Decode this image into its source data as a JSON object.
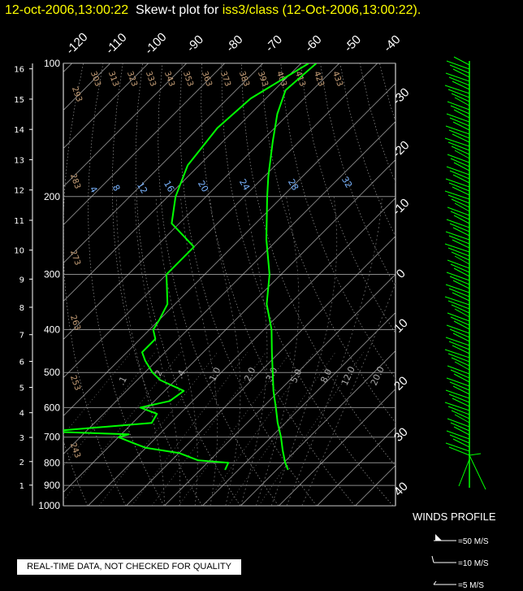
{
  "title": {
    "datetime": "12-oct-2006,13:00:22",
    "mid": "Skew-t plot for",
    "station": "iss3/class",
    "paren": "(12-Oct-2006,13:00:22)."
  },
  "notice": "REAL-TIME DATA, NOT CHECKED FOR QUALITY",
  "colors": {
    "temperature": "#00ff00",
    "dewpoint": "#00ff00",
    "wind": "#00ff00",
    "title": "#ffff00"
  },
  "chart_data": {
    "type": "line",
    "pressure_axis": {
      "ticks": [
        100,
        200,
        300,
        400,
        500,
        600,
        700,
        800,
        900,
        1000
      ],
      "scale": "log",
      "range": [
        1000,
        100
      ]
    },
    "height_km_axis": {
      "ticks": [
        16,
        15,
        14,
        13,
        12,
        11,
        10,
        9,
        8,
        7,
        6,
        5,
        4,
        3,
        2,
        1
      ]
    },
    "top_temp_labels": [
      "-120",
      "-110",
      "-100",
      "-90",
      "-80",
      "-70",
      "-60",
      "-50",
      "-40"
    ],
    "right_temp_labels": [
      "-30",
      "-20",
      "-10",
      "0",
      "10",
      "20",
      "30",
      "40"
    ],
    "dry_adiabat_labels": [
      "293",
      "303",
      "313",
      "323",
      "333",
      "343",
      "353",
      "363",
      "373",
      "383",
      "393",
      "403",
      "413",
      "423",
      "433",
      "283",
      "273",
      "263",
      "253",
      "243"
    ],
    "moist_adiabat_labels": [
      "4",
      "8",
      "12",
      "16",
      "20",
      "24",
      "28",
      "32"
    ],
    "mixing_ratio_labels": [
      ".1",
      ".2",
      ".4",
      "1.0",
      "2.0",
      "3.0",
      "5.0",
      "8.0",
      "12.0",
      "20.0"
    ],
    "series": [
      {
        "name": "Temperature",
        "p": [
          830,
          800,
          750,
          700,
          650,
          600,
          550,
          500,
          450,
          400,
          350,
          300,
          250,
          200,
          180,
          150,
          130,
          115,
          100
        ],
        "t": [
          23,
          20.4,
          16.5,
          12.6,
          8,
          3.5,
          -1.5,
          -6.5,
          -12,
          -18,
          -26,
          -33,
          -43,
          -54,
          -59,
          -67,
          -73,
          -77,
          -76
        ]
      },
      {
        "name": "Dewpoint",
        "p": [
          830,
          800,
          790,
          760,
          740,
          720,
          700,
          690,
          680,
          650,
          620,
          600,
          580,
          550,
          520,
          500,
          470,
          450,
          420,
          400,
          380,
          350,
          300,
          260,
          230,
          200,
          170,
          140,
          120,
          100
        ],
        "t": [
          6.5,
          5.5,
          -3,
          -10,
          -20,
          -25,
          -30,
          -28,
          -50,
          -25,
          -26,
          -32,
          -26,
          -25,
          -34,
          -38,
          -43,
          -46,
          -46,
          -49,
          -50,
          -52,
          -60,
          -60,
          -72,
          -78,
          -83,
          -85,
          -84,
          -78
        ]
      }
    ],
    "winds_profile": {
      "label": "WINDS PROFILE",
      "legend": [
        "=50 M/S",
        "=10 M/S",
        "=5 M/S"
      ]
    }
  }
}
